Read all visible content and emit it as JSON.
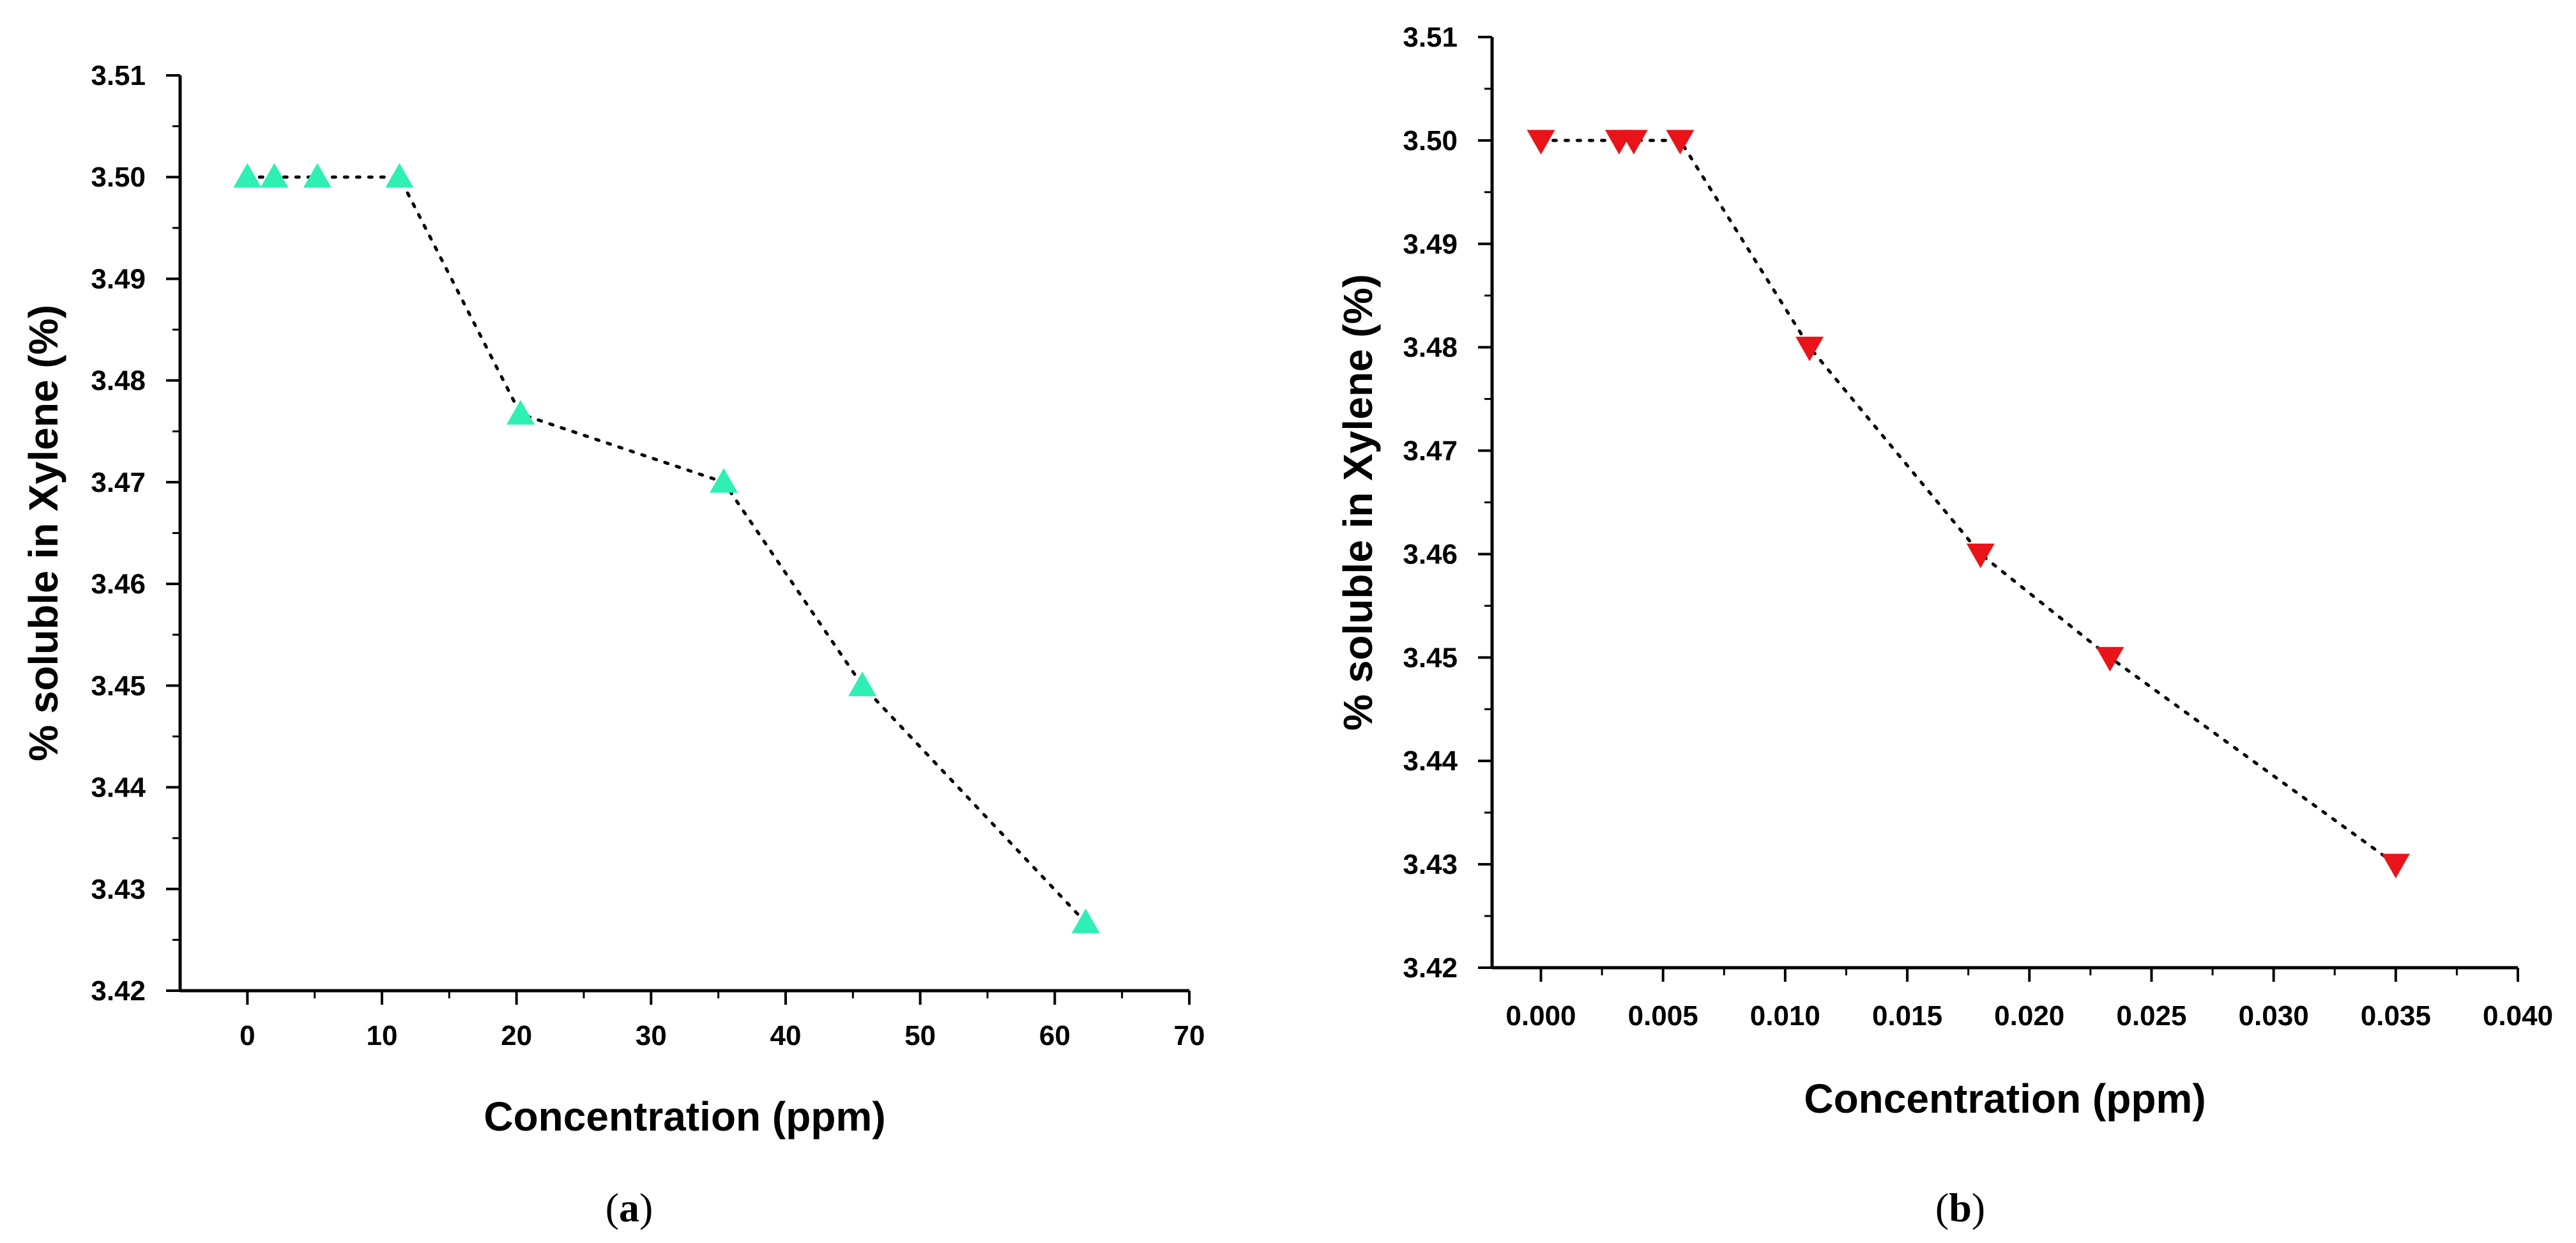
{
  "chart_data": [
    {
      "id": "a",
      "type": "scatter",
      "panel_label": "a",
      "xlabel": "Concentration (ppm)",
      "ylabel": "% soluble in Xylene (%)",
      "xlim": [
        -5,
        70
      ],
      "ylim": [
        3.42,
        3.51
      ],
      "xticks": [
        0,
        10,
        20,
        30,
        40,
        50,
        60,
        70
      ],
      "xtick_labels": [
        "0",
        "10",
        "20",
        "30",
        "40",
        "50",
        "60",
        "70"
      ],
      "yticks": [
        3.42,
        3.43,
        3.44,
        3.45,
        3.46,
        3.47,
        3.48,
        3.49,
        3.5,
        3.51
      ],
      "ytick_labels": [
        "3.42",
        "3.43",
        "3.44",
        "3.45",
        "3.46",
        "3.47",
        "3.48",
        "3.49",
        "3.50",
        "3.51"
      ],
      "marker": "triangle-up",
      "marker_color": "#2EF0B4",
      "line_style": "dotted",
      "series": [
        {
          "name": "",
          "x": [
            0,
            2,
            5.2,
            11.3,
            20.3,
            35.4,
            45.7,
            62.3
          ],
          "y": [
            3.5,
            3.5,
            3.5,
            3.5,
            3.4767,
            3.47,
            3.45,
            3.4267
          ]
        }
      ]
    },
    {
      "id": "b",
      "type": "scatter",
      "panel_label": "b",
      "xlabel": "Concentration (ppm)",
      "ylabel": "% soluble in Xylene (%)",
      "xlim": [
        -0.002,
        0.04
      ],
      "ylim": [
        3.42,
        3.51
      ],
      "xticks": [
        0.0,
        0.005,
        0.01,
        0.015,
        0.02,
        0.025,
        0.03,
        0.035,
        0.04
      ],
      "xtick_labels": [
        "0.000",
        "0.005",
        "0.010",
        "0.015",
        "0.020",
        "0.025",
        "0.030",
        "0.035",
        "0.040"
      ],
      "yticks": [
        3.42,
        3.43,
        3.44,
        3.45,
        3.46,
        3.47,
        3.48,
        3.49,
        3.5,
        3.51
      ],
      "ytick_labels": [
        "3.42",
        "3.43",
        "3.44",
        "3.45",
        "3.46",
        "3.47",
        "3.48",
        "3.49",
        "3.50",
        "3.51"
      ],
      "marker": "triangle-down",
      "marker_color": "#E8141A",
      "line_style": "dotted",
      "series": [
        {
          "name": "",
          "x": [
            0.0,
            0.0032,
            0.0038,
            0.0057,
            0.011,
            0.018,
            0.0233,
            0.035
          ],
          "y": [
            3.5,
            3.5,
            3.5,
            3.5,
            3.48,
            3.46,
            3.45,
            3.43
          ]
        }
      ]
    }
  ]
}
